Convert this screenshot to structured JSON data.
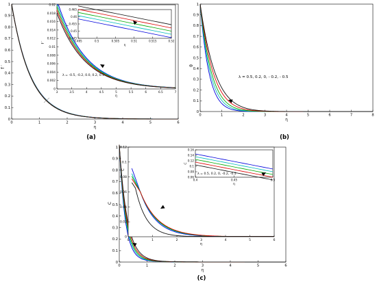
{
  "chart_data": [
    {
      "id": "a",
      "type": "line",
      "panel_label": "(a)",
      "xlabel": "η",
      "ylabel": "f ′",
      "xlim": [
        0,
        6
      ],
      "ylim": [
        0,
        1
      ],
      "xticks": [
        "0",
        "1",
        "2",
        "3",
        "4",
        "5",
        "6"
      ],
      "yticks": [
        "0",
        "0.1",
        "0.2",
        "0.3",
        "0.4",
        "0.5",
        "0.6",
        "0.7",
        "0.8",
        "0.9",
        "1"
      ],
      "curve": {
        "k": 1.45
      },
      "series": [
        {
          "color": "#0000dd"
        },
        {
          "color": "#00bbbb"
        },
        {
          "color": "#00aa00"
        },
        {
          "color": "#dd0000"
        },
        {
          "color": "#111111"
        }
      ],
      "inset": {
        "xlabel": "η",
        "ylabel": "f ′",
        "xlim": [
          3,
          7
        ],
        "ylim": [
          0,
          0.02
        ],
        "xticks": [
          "3",
          "3.5",
          "4",
          "4.5",
          "5",
          "5.5",
          "6",
          "6.5",
          "7"
        ],
        "yticks": [
          "0",
          "0.002",
          "0.004",
          "0.006",
          "0.008",
          "0.01",
          "0.012",
          "0.014",
          "0.016",
          "0.018",
          "0.02"
        ],
        "annotation": "λ = -0.5, -0.2, 0.0, 0.2, 0.5",
        "inset": {
          "xlabel": "η",
          "ylabel": "f ′",
          "xlim": [
            0.495,
            0.52
          ],
          "ylim": [
            0.445,
            0.465
          ],
          "xticks": [
            "0.495",
            "0.5",
            "0.505",
            "0.51",
            "0.515",
            "0.52"
          ],
          "yticks": [
            "0.445",
            "0.45",
            "0.455",
            "0.46",
            "0.465"
          ]
        }
      }
    },
    {
      "id": "b",
      "type": "line",
      "panel_label": "(b)",
      "xlabel": "η",
      "ylabel": "θ",
      "xlim": [
        0,
        8
      ],
      "ylim": [
        0,
        1
      ],
      "xticks": [
        "0",
        "1",
        "2",
        "3",
        "4",
        "5",
        "6",
        "7",
        "8"
      ],
      "yticks": [
        "0",
        "0.1",
        "0.2",
        "0.3",
        "0.4",
        "0.5",
        "0.6",
        "0.7",
        "0.8",
        "0.9",
        "1"
      ],
      "annotation": "λ = 0.5, 0.2, 0, - 0.2, - 0.5",
      "series": [
        {
          "color": "#0000dd"
        },
        {
          "color": "#00bbbb"
        },
        {
          "color": "#00aa00"
        },
        {
          "color": "#dd0000"
        },
        {
          "color": "#111111"
        }
      ]
    },
    {
      "id": "c",
      "type": "line",
      "panel_label": "(c)",
      "xlabel": "η",
      "ylabel": "C",
      "xlim": [
        0,
        6
      ],
      "ylim": [
        0,
        1
      ],
      "xticks": [
        "0",
        "1",
        "2",
        "3",
        "4",
        "5",
        "6"
      ],
      "yticks": [
        "0",
        "0.1",
        "0.2",
        "0.3",
        "0.4",
        "0.5",
        "0.6",
        "0.7",
        "0.8",
        "0.9",
        "1"
      ],
      "series": [
        {
          "color": "#0000dd"
        },
        {
          "color": "#00bbbb"
        },
        {
          "color": "#00aa00"
        },
        {
          "color": "#dd0000"
        },
        {
          "color": "#111111"
        }
      ],
      "inset": {
        "xlabel": "η",
        "ylabel": "C",
        "xlim": [
          0,
          6
        ],
        "ylim": [
          0,
          0.12
        ],
        "xticks": [
          "0",
          "1",
          "2",
          "3",
          "4",
          "5",
          "6"
        ],
        "yticks": [
          "0",
          "0.02",
          "0.04",
          "0.06",
          "0.08",
          "0.1",
          "0.12"
        ],
        "inset": {
          "xlabel": "η",
          "ylabel": "C",
          "xlim": [
            0.4,
            0.5
          ],
          "ylim": [
            0.06,
            0.16
          ],
          "xticks": [
            "0.4",
            "0.45",
            "0.5"
          ],
          "yticks": [
            "0.06",
            "0.08",
            "0.1",
            "0.12",
            "0.14",
            "0.16"
          ],
          "annotation": "λ = 0.5, 0.2, 0, -0.2, -0.5"
        }
      }
    }
  ]
}
